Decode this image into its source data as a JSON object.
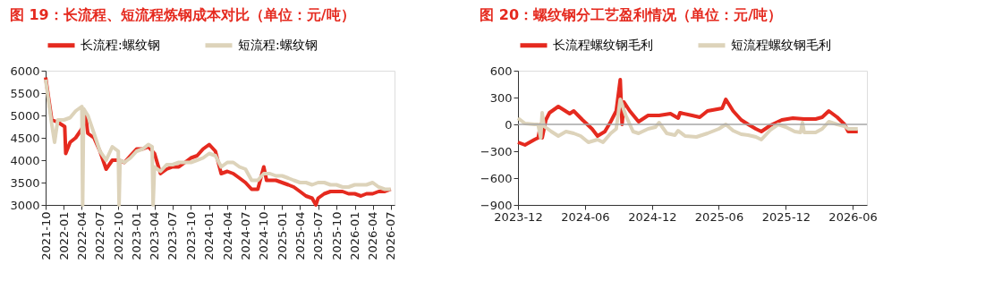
{
  "chart_data": [
    {
      "type": "line",
      "title": "图 19：长流程、短流程炼钢成本对比（单位：元/吨）",
      "legend": "top",
      "grid": false,
      "line_style": "solid",
      "marker": "none",
      "xlim": [
        "2021-10-01",
        "2026-07-20"
      ],
      "xticks": [
        "2021-10",
        "2022-01",
        "2022-04",
        "2022-07",
        "2022-10",
        "2023-01",
        "2023-04",
        "2023-07",
        "2023-10",
        "2024-01",
        "2024-04",
        "2024-07",
        "2024-10",
        "2025-01",
        "2025-04",
        "2025-07",
        "2025-10",
        "2026-01",
        "2026-04",
        "2026-07"
      ],
      "ylim": [
        3000,
        6000
      ],
      "yticks": [
        3000,
        3500,
        4000,
        4500,
        5000,
        5500,
        6000
      ],
      "series": [
        {
          "name": "长流程:螺纹钢",
          "color": "#e52a1f",
          "x": [
            "2021-10-01",
            "2021-11-01",
            "2021-12-01",
            "2022-01-05",
            "2022-01-10",
            "2022-02-01",
            "2022-03-01",
            "2022-04-01",
            "2022-04-20",
            "2022-05-01",
            "2022-06-01",
            "2022-07-01",
            "2022-08-01",
            "2022-09-01",
            "2022-10-01",
            "2022-11-01",
            "2022-12-01",
            "2023-01-01",
            "2023-02-01",
            "2023-03-01",
            "2023-04-01",
            "2023-05-01",
            "2023-06-01",
            "2023-07-01",
            "2023-08-01",
            "2023-09-01",
            "2023-10-01",
            "2023-11-01",
            "2023-12-01",
            "2024-01-01",
            "2024-02-01",
            "2024-03-01",
            "2024-04-01",
            "2024-05-01",
            "2024-06-01",
            "2024-07-01",
            "2024-08-01",
            "2024-09-01",
            "2024-10-01",
            "2024-10-15",
            "2024-11-01",
            "2024-12-01",
            "2025-01-01",
            "2025-02-01",
            "2025-03-01",
            "2025-04-01",
            "2025-05-01",
            "2025-06-01",
            "2025-06-20",
            "2025-07-01",
            "2025-08-01",
            "2025-09-01",
            "2025-10-01",
            "2025-11-01",
            "2025-12-01",
            "2026-01-01",
            "2026-02-01",
            "2026-03-01",
            "2026-04-01",
            "2026-05-01",
            "2026-06-01",
            "2026-07-01"
          ],
          "values": [
            5850,
            4900,
            4850,
            4750,
            4150,
            4400,
            4500,
            4700,
            5000,
            4600,
            4500,
            4200,
            3800,
            4000,
            4000,
            3950,
            4100,
            4250,
            4250,
            4300,
            4150,
            3700,
            3800,
            3850,
            3850,
            3950,
            4050,
            4100,
            4250,
            4350,
            4200,
            3700,
            3750,
            3700,
            3600,
            3500,
            3350,
            3350,
            3850,
            3550,
            3550,
            3550,
            3500,
            3450,
            3400,
            3300,
            3200,
            3150,
            3000,
            3150,
            3250,
            3300,
            3300,
            3300,
            3250,
            3250,
            3200,
            3250,
            3250,
            3300,
            3300,
            3350
          ]
        },
        {
          "name": "短流程:螺纹钢",
          "color": "#ddd3ba",
          "x": [
            "2021-10-01",
            "2021-11-01",
            "2021-11-15",
            "2021-12-01",
            "2022-01-01",
            "2022-02-01",
            "2022-03-01",
            "2022-04-01",
            "2022-04-05",
            "2022-04-10",
            "2022-05-01",
            "2022-06-01",
            "2022-07-01",
            "2022-08-01",
            "2022-09-01",
            "2022-10-01",
            "2022-10-05",
            "2022-10-10",
            "2022-11-01",
            "2022-12-01",
            "2023-01-01",
            "2023-02-01",
            "2023-03-01",
            "2023-03-20",
            "2023-03-25",
            "2023-04-01",
            "2023-05-01",
            "2023-06-01",
            "2023-07-01",
            "2023-08-01",
            "2023-09-01",
            "2023-10-01",
            "2023-11-01",
            "2023-12-01",
            "2024-01-01",
            "2024-02-01",
            "2024-03-01",
            "2024-04-01",
            "2024-05-01",
            "2024-06-01",
            "2024-07-01",
            "2024-08-01",
            "2024-09-01",
            "2024-10-01",
            "2024-11-01",
            "2024-12-01",
            "2025-01-01",
            "2025-02-01",
            "2025-03-01",
            "2025-04-01",
            "2025-05-01",
            "2025-06-01",
            "2025-07-01",
            "2025-08-01",
            "2025-09-01",
            "2025-10-01",
            "2025-11-01",
            "2025-12-01",
            "2026-01-01",
            "2026-02-01",
            "2026-03-01",
            "2026-04-01",
            "2026-05-01",
            "2026-06-01",
            "2026-07-01"
          ],
          "values": [
            5800,
            4800,
            4400,
            4900,
            4900,
            4950,
            5100,
            5200,
            3000,
            5150,
            5000,
            4600,
            4200,
            4000,
            4300,
            4200,
            3000,
            4000,
            3950,
            4050,
            4200,
            4250,
            4350,
            4300,
            3000,
            3850,
            3750,
            3900,
            3900,
            3950,
            3950,
            3950,
            4000,
            4050,
            4150,
            4100,
            3850,
            3950,
            3950,
            3850,
            3800,
            3550,
            3550,
            3700,
            3700,
            3650,
            3650,
            3600,
            3550,
            3500,
            3500,
            3450,
            3500,
            3500,
            3450,
            3450,
            3400,
            3400,
            3450,
            3450,
            3450,
            3500,
            3400,
            3350,
            3350
          ]
        }
      ]
    },
    {
      "type": "line",
      "title": "图 20：螺纹钢分工艺盈利情况（单位：元/吨）",
      "legend": "top",
      "grid": false,
      "line_style": "solid",
      "marker": "none",
      "xlim": [
        "2023-12-01",
        "2026-07-10"
      ],
      "xticks": [
        "2023-12",
        "2024-06",
        "2024-12",
        "2025-06",
        "2025-12",
        "2026-06"
      ],
      "ylim": [
        -900,
        600
      ],
      "yticks": [
        -900,
        -600,
        -300,
        0,
        300,
        600
      ],
      "ref_lines": [
        {
          "axis": "y",
          "value": 0,
          "color": "#a6a6a6"
        }
      ],
      "series": [
        {
          "name": "长流程螺纹钢毛利",
          "color": "#e52a1f",
          "x": [
            "2023-12-01",
            "2023-12-20",
            "2024-01-15",
            "2024-01-25",
            "2024-02-01",
            "2024-02-05",
            "2024-02-15",
            "2024-02-25",
            "2024-03-20",
            "2024-04-20",
            "2024-05-01",
            "2024-05-25",
            "2024-06-20",
            "2024-07-05",
            "2024-07-25",
            "2024-08-10",
            "2024-08-25",
            "2024-09-05",
            "2024-09-10",
            "2024-09-15",
            "2024-10-01",
            "2024-10-25",
            "2024-11-20",
            "2024-12-20",
            "2025-01-20",
            "2025-02-10",
            "2025-02-15",
            "2025-03-20",
            "2025-04-10",
            "2025-05-01",
            "2025-06-10",
            "2025-06-20",
            "2025-07-10",
            "2025-08-01",
            "2025-08-20",
            "2025-09-10",
            "2025-09-25",
            "2025-10-20",
            "2025-11-20",
            "2025-12-20",
            "2026-01-20",
            "2026-02-20",
            "2026-03-10",
            "2026-03-28",
            "2026-04-20",
            "2026-05-10",
            "2026-05-20",
            "2026-06-15"
          ],
          "values": [
            -200,
            -230,
            -170,
            -150,
            0,
            -150,
            50,
            130,
            200,
            120,
            150,
            50,
            -50,
            -130,
            -80,
            30,
            150,
            500,
            0,
            250,
            150,
            30,
            100,
            100,
            120,
            70,
            130,
            100,
            80,
            150,
            180,
            280,
            150,
            50,
            0,
            -50,
            -80,
            -10,
            50,
            70,
            60,
            60,
            80,
            150,
            80,
            0,
            -80,
            -80
          ]
        },
        {
          "name": "短流程螺纹钢毛利",
          "color": "#ddd3ba",
          "x": [
            "2023-12-01",
            "2023-12-20",
            "2024-01-15",
            "2024-01-25",
            "2024-02-01",
            "2024-02-05",
            "2024-02-10",
            "2024-03-01",
            "2024-03-20",
            "2024-04-10",
            "2024-05-01",
            "2024-05-20",
            "2024-06-10",
            "2024-07-05",
            "2024-07-20",
            "2024-08-10",
            "2024-08-25",
            "2024-09-05",
            "2024-09-20",
            "2024-10-10",
            "2024-10-25",
            "2024-11-20",
            "2024-12-10",
            "2024-12-20",
            "2025-01-10",
            "2025-02-01",
            "2025-02-10",
            "2025-03-01",
            "2025-04-01",
            "2025-05-01",
            "2025-06-01",
            "2025-06-20",
            "2025-07-10",
            "2025-08-01",
            "2025-08-20",
            "2025-09-10",
            "2025-09-25",
            "2025-10-20",
            "2025-11-10",
            "2025-12-01",
            "2025-12-25",
            "2026-01-10",
            "2026-01-15",
            "2026-01-20",
            "2026-02-20",
            "2026-03-10",
            "2026-03-28",
            "2026-04-20",
            "2026-05-10",
            "2026-05-20",
            "2026-06-15"
          ],
          "values": [
            70,
            10,
            0,
            0,
            -150,
            130,
            -20,
            -80,
            -130,
            -80,
            -100,
            -130,
            -200,
            -170,
            -200,
            -100,
            -50,
            280,
            100,
            -80,
            -100,
            -50,
            -30,
            20,
            -100,
            -120,
            -70,
            -130,
            -140,
            -100,
            -50,
            0,
            -70,
            -110,
            -120,
            -140,
            -170,
            -60,
            0,
            -30,
            -80,
            -90,
            20,
            -90,
            -90,
            -50,
            30,
            0,
            -20,
            -50,
            -50
          ]
        }
      ]
    }
  ]
}
